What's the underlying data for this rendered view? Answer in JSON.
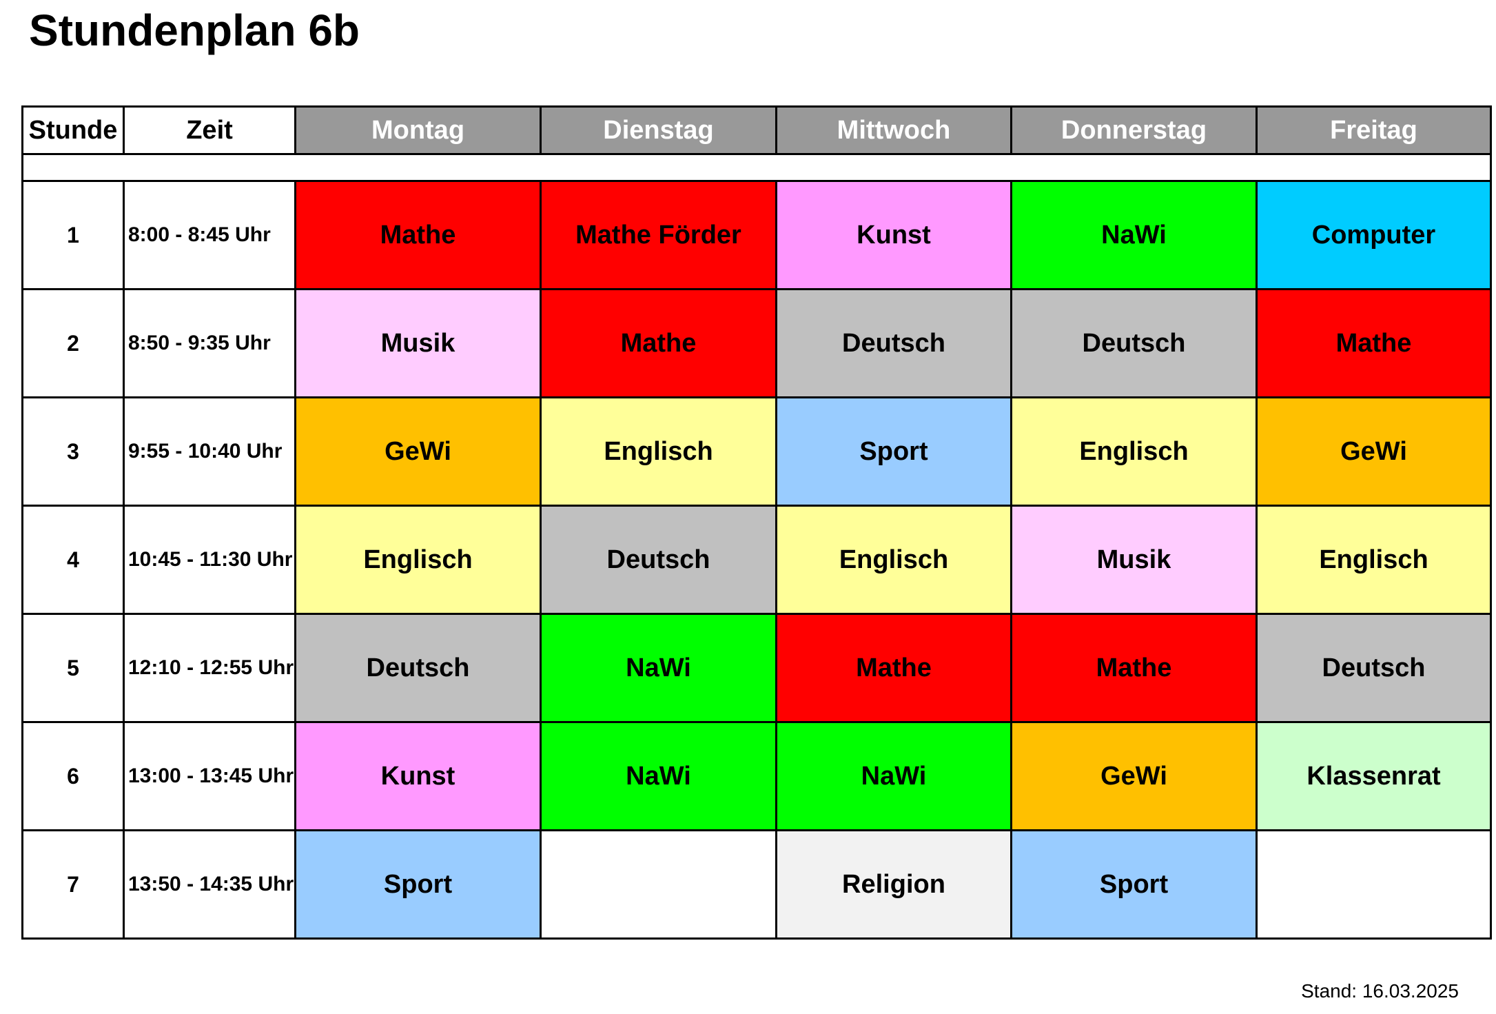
{
  "title": "Stundenplan 6b",
  "headers": {
    "stunde": "Stunde",
    "zeit": "Zeit",
    "days": [
      "Montag",
      "Dienstag",
      "Mittwoch",
      "Donnerstag",
      "Freitag"
    ]
  },
  "colors": {
    "Mathe": "#ff0000",
    "Mathe Förder": "#ff0000",
    "Kunst": "#ff99ff",
    "NaWi": "#00ff00",
    "Computer": "#00ccff",
    "Musik": "#ffccff",
    "Deutsch": "#c0c0c0",
    "GeWi": "#ffc000",
    "Englisch": "#ffff99",
    "Sport": "#99ccff",
    "Klassenrat": "#ccffcc",
    "Religion": "#f2f2f2",
    "header": "#999999",
    "empty": "#ffffff"
  },
  "rows": [
    {
      "stunde": "1",
      "zeit": "8:00 - 8:45 Uhr",
      "cells": [
        "Mathe",
        "Mathe Förder",
        "Kunst",
        "NaWi",
        "Computer"
      ]
    },
    {
      "stunde": "2",
      "zeit": "8:50 - 9:35 Uhr",
      "cells": [
        "Musik",
        "Mathe",
        "Deutsch",
        "Deutsch",
        "Mathe"
      ]
    },
    {
      "stunde": "3",
      "zeit": "9:55 - 10:40 Uhr",
      "cells": [
        "GeWi",
        "Englisch",
        "Sport",
        "Englisch",
        "GeWi"
      ]
    },
    {
      "stunde": "4",
      "zeit": "10:45 - 11:30 Uhr",
      "cells": [
        "Englisch",
        "Deutsch",
        "Englisch",
        "Musik",
        "Englisch"
      ]
    },
    {
      "stunde": "5",
      "zeit": "12:10 - 12:55 Uhr",
      "cells": [
        "Deutsch",
        "NaWi",
        "Mathe",
        "Mathe",
        "Deutsch"
      ]
    },
    {
      "stunde": "6",
      "zeit": "13:00 - 13:45 Uhr",
      "cells": [
        "Kunst",
        "NaWi",
        "NaWi",
        "GeWi",
        "Klassenrat"
      ]
    },
    {
      "stunde": "7",
      "zeit": "13:50 - 14:35 Uhr",
      "cells": [
        "Sport",
        "",
        "Religion",
        "Sport",
        ""
      ]
    }
  ],
  "footer": {
    "stand": "Stand: 16.03.2025"
  }
}
